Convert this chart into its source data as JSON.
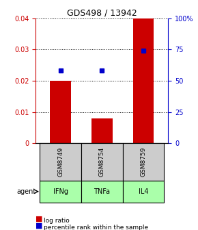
{
  "title": "GDS498 / 13942",
  "categories": [
    "GSM8749",
    "GSM8754",
    "GSM8759"
  ],
  "agents": [
    "IFNg",
    "TNFa",
    "IL4"
  ],
  "bar_values": [
    0.02,
    0.008,
    0.04
  ],
  "percentile_values": [
    58,
    58,
    74
  ],
  "bar_color": "#cc0000",
  "percentile_color": "#0000cc",
  "ylim_left": [
    0,
    0.04
  ],
  "ylim_right": [
    0,
    100
  ],
  "yticks_left": [
    0,
    0.01,
    0.02,
    0.03,
    0.04
  ],
  "ytick_labels_left": [
    "0",
    "0.01",
    "0.02",
    "0.03",
    "0.04"
  ],
  "yticks_right": [
    0,
    25,
    50,
    75,
    100
  ],
  "ytick_labels_right": [
    "0",
    "25",
    "50",
    "75",
    "100%"
  ],
  "bar_width": 0.5,
  "agent_colors": [
    "#aaffaa",
    "#aaffaa",
    "#aaffaa"
  ],
  "sample_box_color": "#cccccc",
  "agent_label": "agent",
  "legend_items": [
    "log ratio",
    "percentile rank within the sample"
  ]
}
